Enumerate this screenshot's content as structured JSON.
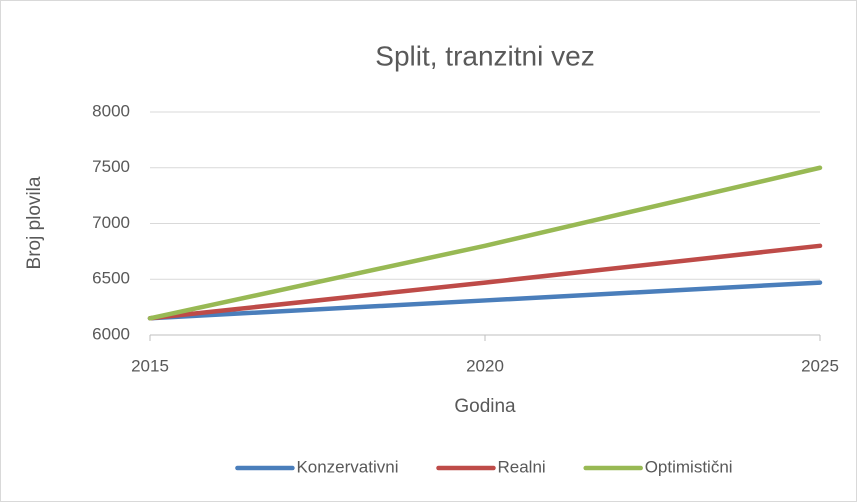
{
  "chart_data": {
    "type": "line",
    "title": "Split, tranzitni vez",
    "x_label": "Godina",
    "y_label": "Broj plovila",
    "x": [
      2015,
      2020,
      2025
    ],
    "series": [
      {
        "name": "Konzervativni",
        "color": "#4a7ebb",
        "values": [
          6150,
          6310,
          6470
        ]
      },
      {
        "name": "Realni",
        "color": "#be4b48",
        "values": [
          6150,
          6470,
          6800
        ]
      },
      {
        "name": "Optimistični",
        "color": "#98b954",
        "values": [
          6150,
          6800,
          7500
        ]
      }
    ],
    "xlim": [
      2015,
      2025
    ],
    "xticks": [
      2015,
      2020,
      2025
    ],
    "ylim": [
      6000,
      8000
    ],
    "yticks": [
      6000,
      6500,
      7000,
      7500,
      8000
    ],
    "grid": true,
    "legend": "bottom"
  }
}
